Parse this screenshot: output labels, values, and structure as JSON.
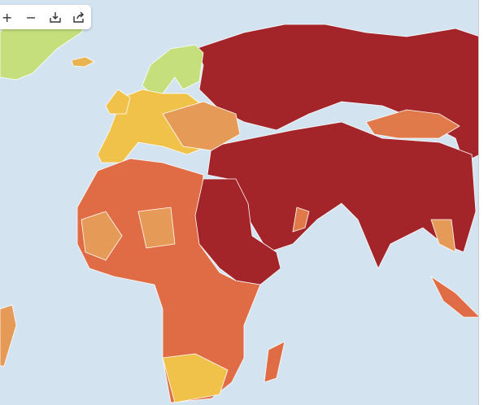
{
  "toolbar": {
    "buttons": [
      "+",
      "−"
    ]
  }
}
